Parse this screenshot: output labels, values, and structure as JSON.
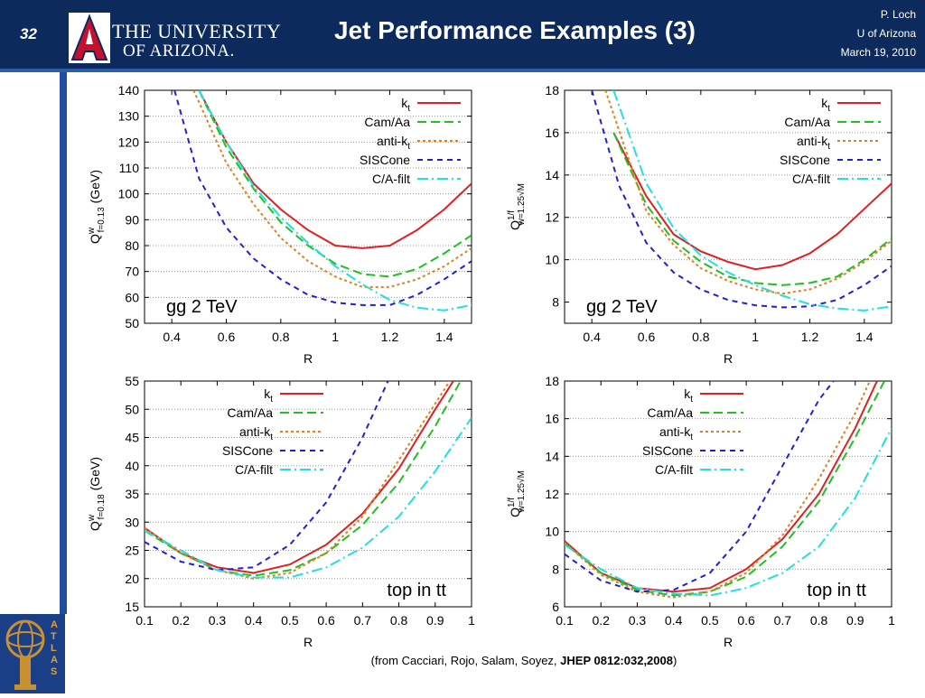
{
  "header": {
    "slide_number": "32",
    "university_line1": "THE UNIVERSITY",
    "university_line2": "OF ARIZONA.",
    "logo_icon": "arizona-a-logo-icon",
    "title": "Jet Performance Examples (3)",
    "author": "P. Loch",
    "affiliation": "U of Arizona",
    "date": "March 19, 2010",
    "background_color": "#0c2b5c",
    "accent_color": "#2d5fa8"
  },
  "sidebar": {
    "logo_icon": "atlas-logo-icon",
    "label": "ATLAS"
  },
  "caption": {
    "prefix": "(from Cacciari, Rojo, Salam, Soyez, ",
    "ref": "JHEP 0812:032,2008",
    "suffix": ")"
  },
  "chart_data": [
    {
      "type": "line",
      "annotation": "gg 2 TeV",
      "xlabel": "R",
      "ylabel": "Q^w_{f=0.13} (GeV)",
      "ylabel_main": "Q",
      "ylabel_sup": "w",
      "ylabel_sub": "f=0.13",
      "ylabel_unit": " (GeV)",
      "xlim": [
        0.3,
        1.5
      ],
      "ylim": [
        50,
        140
      ],
      "xticks": [
        "0.4",
        "0.6",
        "0.8",
        "1",
        "1.2",
        "1.4"
      ],
      "xtick_values": [
        0.4,
        0.6,
        0.8,
        1,
        1.2,
        1.4
      ],
      "yticks": [
        "50",
        "60",
        "70",
        "80",
        "90",
        "100",
        "110",
        "120",
        "130",
        "140"
      ],
      "ytick_values": [
        50,
        60,
        70,
        80,
        90,
        100,
        110,
        120,
        130,
        140
      ],
      "grid": "horizontal",
      "legend": "top-right",
      "series": [
        {
          "name": "k_t",
          "label_main": "k",
          "label_sub": "t",
          "color": "#e02020",
          "dash": "",
          "x": [
            0.5,
            0.6,
            0.7,
            0.8,
            0.9,
            1.0,
            1.1,
            1.2,
            1.3,
            1.4,
            1.5
          ],
          "y": [
            140,
            120,
            104,
            94,
            86,
            80,
            79,
            80,
            86,
            94,
            104
          ]
        },
        {
          "name": "Cam/Aa",
          "label_main": "Cam/Aa",
          "label_sub": "",
          "color": "#20c020",
          "dash": "10,5",
          "x": [
            0.5,
            0.6,
            0.7,
            0.8,
            0.9,
            1.0,
            1.1,
            1.2,
            1.3,
            1.4,
            1.5
          ],
          "y": [
            140,
            118,
            102,
            89,
            80,
            73,
            69,
            68,
            71,
            77,
            84
          ]
        },
        {
          "name": "anti-k_t",
          "label_main": "anti-k",
          "label_sub": "t",
          "color": "#e08020",
          "dash": "3,3",
          "x": [
            0.48,
            0.6,
            0.7,
            0.8,
            0.9,
            1.0,
            1.1,
            1.2,
            1.3,
            1.4,
            1.5
          ],
          "y": [
            140,
            112,
            96,
            83,
            74,
            68,
            64,
            64,
            67,
            72,
            79
          ]
        },
        {
          "name": "SISCone",
          "label_main": "SISCone",
          "label_sub": "",
          "color": "#2020d0",
          "dash": "6,5",
          "x": [
            0.41,
            0.5,
            0.6,
            0.7,
            0.8,
            0.9,
            1.0,
            1.1,
            1.2,
            1.3,
            1.4,
            1.5
          ],
          "y": [
            140,
            106,
            87,
            75,
            67,
            61,
            58,
            57,
            57,
            61,
            67,
            74
          ]
        },
        {
          "name": "C/A-filt",
          "label_main": "C/A-filt",
          "label_sub": "",
          "color": "#20e0e0",
          "dash": "12,4,2,4",
          "x": [
            0.5,
            0.6,
            0.7,
            0.8,
            0.9,
            1.0,
            1.1,
            1.2,
            1.3,
            1.4,
            1.5
          ],
          "y": [
            140,
            120,
            103,
            91,
            81,
            72,
            65,
            59,
            56,
            55,
            57
          ]
        }
      ]
    },
    {
      "type": "line",
      "annotation": "gg 2 TeV",
      "xlabel": "R",
      "ylabel": "Q^{1/f}_{w=1.25√M}",
      "ylabel_main": "Q",
      "ylabel_sup": "1/f",
      "ylabel_sub": "w=1.25√M",
      "ylabel_unit": "",
      "xlim": [
        0.3,
        1.5
      ],
      "ylim": [
        7,
        18
      ],
      "xticks": [
        "0.4",
        "0.6",
        "0.8",
        "1",
        "1.2",
        "1.4"
      ],
      "xtick_values": [
        0.4,
        0.6,
        0.8,
        1,
        1.2,
        1.4
      ],
      "yticks": [
        "8",
        "10",
        "12",
        "14",
        "16",
        "18"
      ],
      "ytick_values": [
        8,
        10,
        12,
        14,
        16,
        18
      ],
      "grid": "horizontal",
      "legend": "top-right",
      "series": [
        {
          "name": "k_t",
          "label_main": "k",
          "label_sub": "t",
          "color": "#e02020",
          "dash": "",
          "x": [
            0.48,
            0.6,
            0.7,
            0.8,
            0.9,
            1.0,
            1.1,
            1.2,
            1.3,
            1.4,
            1.5
          ],
          "y": [
            16,
            13,
            11.2,
            10.4,
            9.9,
            9.55,
            9.75,
            10.3,
            11.2,
            12.4,
            13.6
          ]
        },
        {
          "name": "Cam/Aa",
          "label_main": "Cam/Aa",
          "label_sub": "",
          "color": "#20c020",
          "dash": "10,5",
          "x": [
            0.48,
            0.6,
            0.7,
            0.8,
            0.9,
            1.0,
            1.1,
            1.2,
            1.3,
            1.4,
            1.5
          ],
          "y": [
            16,
            12.6,
            10.9,
            9.9,
            9.2,
            8.9,
            8.8,
            8.9,
            9.2,
            10.0,
            11.0
          ]
        },
        {
          "name": "anti-k_t",
          "label_main": "anti-k",
          "label_sub": "t",
          "color": "#e08020",
          "dash": "3,3",
          "x": [
            0.45,
            0.6,
            0.7,
            0.8,
            0.9,
            1.0,
            1.1,
            1.2,
            1.3,
            1.4,
            1.5
          ],
          "y": [
            18,
            12.3,
            10.7,
            9.6,
            9.0,
            8.6,
            8.4,
            8.6,
            9.1,
            9.9,
            10.9
          ]
        },
        {
          "name": "SISCone",
          "label_main": "SISCone",
          "label_sub": "",
          "color": "#2020d0",
          "dash": "6,5",
          "x": [
            0.4,
            0.5,
            0.6,
            0.7,
            0.8,
            0.9,
            1.0,
            1.1,
            1.2,
            1.3,
            1.4,
            1.5
          ],
          "y": [
            18,
            13.5,
            10.8,
            9.4,
            8.6,
            8.1,
            7.85,
            7.75,
            7.8,
            8.1,
            8.8,
            9.7
          ]
        },
        {
          "name": "C/A-filt",
          "label_main": "C/A-filt",
          "label_sub": "",
          "color": "#20e0e0",
          "dash": "12,4,2,4",
          "x": [
            0.48,
            0.6,
            0.7,
            0.8,
            0.9,
            1.0,
            1.1,
            1.2,
            1.3,
            1.4,
            1.5
          ],
          "y": [
            18,
            13.6,
            11.5,
            10.2,
            9.4,
            8.8,
            8.3,
            7.9,
            7.7,
            7.6,
            7.8
          ]
        }
      ]
    },
    {
      "type": "line",
      "annotation": "top in tt",
      "xlabel": "R",
      "ylabel": "Q^w_{f=0.18} (GeV)",
      "ylabel_main": "Q",
      "ylabel_sup": "w",
      "ylabel_sub": "f=0.18",
      "ylabel_unit": " (GeV)",
      "xlim": [
        0.1,
        1.0
      ],
      "ylim": [
        15,
        55
      ],
      "xticks": [
        "0.1",
        "0.2",
        "0.3",
        "0.4",
        "0.5",
        "0.6",
        "0.7",
        "0.8",
        "0.9",
        "1"
      ],
      "xtick_values": [
        0.1,
        0.2,
        0.3,
        0.4,
        0.5,
        0.6,
        0.7,
        0.8,
        0.9,
        1.0
      ],
      "yticks": [
        "15",
        "20",
        "25",
        "30",
        "35",
        "40",
        "45",
        "50",
        "55"
      ],
      "ytick_values": [
        15,
        20,
        25,
        30,
        35,
        40,
        45,
        50,
        55
      ],
      "grid": "horizontal",
      "legend": "top-left",
      "series": [
        {
          "name": "k_t",
          "label_main": "k",
          "label_sub": "t",
          "color": "#e02020",
          "dash": "",
          "x": [
            0.1,
            0.2,
            0.3,
            0.4,
            0.5,
            0.6,
            0.7,
            0.8,
            0.9,
            0.95
          ],
          "y": [
            29,
            24.5,
            22,
            21,
            22.5,
            26,
            31.5,
            39.5,
            50,
            55
          ]
        },
        {
          "name": "Cam/Aa",
          "label_main": "Cam/Aa",
          "label_sub": "",
          "color": "#20c020",
          "dash": "10,5",
          "x": [
            0.1,
            0.2,
            0.3,
            0.4,
            0.5,
            0.6,
            0.7,
            0.8,
            0.9,
            0.97
          ],
          "y": [
            28.5,
            24.5,
            21.5,
            20.5,
            21.5,
            24.5,
            29.5,
            37,
            47,
            55
          ]
        },
        {
          "name": "anti-k_t",
          "label_main": "anti-k",
          "label_sub": "t",
          "color": "#e08020",
          "dash": "3,3",
          "x": [
            0.1,
            0.2,
            0.3,
            0.4,
            0.5,
            0.6,
            0.7,
            0.8,
            0.9,
            0.94
          ],
          "y": [
            29,
            24.5,
            21.5,
            20,
            21,
            24.5,
            31,
            41,
            51,
            55
          ]
        },
        {
          "name": "SISCone",
          "label_main": "SISCone",
          "label_sub": "",
          "color": "#2020d0",
          "dash": "6,5",
          "x": [
            0.1,
            0.2,
            0.3,
            0.4,
            0.5,
            0.6,
            0.7,
            0.77
          ],
          "y": [
            26.5,
            23,
            21.5,
            22,
            26,
            33.5,
            45,
            55
          ]
        },
        {
          "name": "C/A-filt",
          "label_main": "C/A-filt",
          "label_sub": "",
          "color": "#20e0e0",
          "dash": "12,4,2,4",
          "x": [
            0.1,
            0.2,
            0.3,
            0.4,
            0.5,
            0.6,
            0.7,
            0.8,
            0.9,
            1.0
          ],
          "y": [
            28.5,
            25,
            21.5,
            20.2,
            20.2,
            22,
            25.5,
            31,
            39,
            48.5
          ]
        }
      ]
    },
    {
      "type": "line",
      "annotation": "top in tt",
      "xlabel": "R",
      "ylabel": "Q^{1/f}_{w=1.25√M}",
      "ylabel_main": "Q",
      "ylabel_sup": "1/f",
      "ylabel_sub": "w=1.25√M",
      "ylabel_unit": "",
      "xlim": [
        0.1,
        1.0
      ],
      "ylim": [
        6,
        18
      ],
      "xticks": [
        "0.1",
        "0.2",
        "0.3",
        "0.4",
        "0.5",
        "0.6",
        "0.7",
        "0.8",
        "0.9",
        "1"
      ],
      "xtick_values": [
        0.1,
        0.2,
        0.3,
        0.4,
        0.5,
        0.6,
        0.7,
        0.8,
        0.9,
        1.0
      ],
      "yticks": [
        "6",
        "8",
        "10",
        "12",
        "14",
        "16",
        "18"
      ],
      "ytick_values": [
        6,
        8,
        10,
        12,
        14,
        16,
        18
      ],
      "grid": "horizontal",
      "legend": "top-left",
      "series": [
        {
          "name": "k_t",
          "label_main": "k",
          "label_sub": "t",
          "color": "#e02020",
          "dash": "",
          "x": [
            0.1,
            0.2,
            0.3,
            0.4,
            0.5,
            0.6,
            0.7,
            0.8,
            0.9,
            0.96
          ],
          "y": [
            9.5,
            7.8,
            7.0,
            6.8,
            7.0,
            8.0,
            9.6,
            12.0,
            15.5,
            18
          ]
        },
        {
          "name": "Cam/Aa",
          "label_main": "Cam/Aa",
          "label_sub": "",
          "color": "#20c020",
          "dash": "10,5",
          "x": [
            0.1,
            0.2,
            0.3,
            0.4,
            0.5,
            0.6,
            0.7,
            0.8,
            0.9,
            0.98
          ],
          "y": [
            9.4,
            7.8,
            6.9,
            6.6,
            6.8,
            7.6,
            9.2,
            11.6,
            15.0,
            18
          ]
        },
        {
          "name": "anti-k_t",
          "label_main": "anti-k",
          "label_sub": "t",
          "color": "#e08020",
          "dash": "3,3",
          "x": [
            0.1,
            0.2,
            0.3,
            0.4,
            0.5,
            0.6,
            0.7,
            0.8,
            0.9,
            0.94
          ],
          "y": [
            9.4,
            7.7,
            6.8,
            6.5,
            6.8,
            7.8,
            9.8,
            12.8,
            16.3,
            18
          ]
        },
        {
          "name": "SISCone",
          "label_main": "SISCone",
          "label_sub": "",
          "color": "#2020d0",
          "dash": "6,5",
          "x": [
            0.1,
            0.2,
            0.3,
            0.4,
            0.5,
            0.6,
            0.7,
            0.8,
            0.84
          ],
          "y": [
            8.8,
            7.4,
            6.8,
            6.9,
            7.8,
            10.0,
            13.5,
            17.0,
            18
          ]
        },
        {
          "name": "C/A-filt",
          "label_main": "C/A-filt",
          "label_sub": "",
          "color": "#20e0e0",
          "dash": "12,4,2,4",
          "x": [
            0.1,
            0.2,
            0.3,
            0.4,
            0.5,
            0.6,
            0.7,
            0.8,
            0.9,
            1.0
          ],
          "y": [
            9.3,
            8.0,
            7.0,
            6.7,
            6.6,
            7.0,
            7.8,
            9.2,
            11.8,
            15.5
          ]
        }
      ]
    }
  ]
}
